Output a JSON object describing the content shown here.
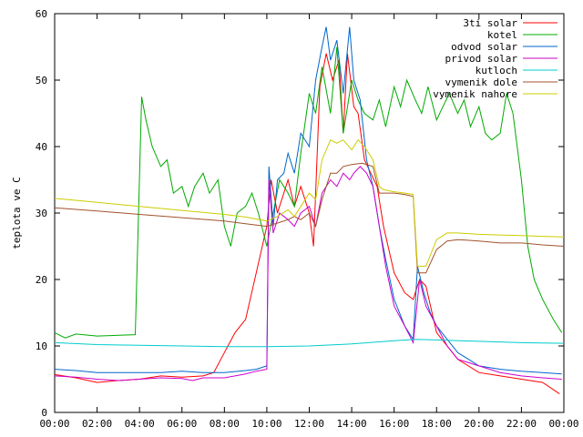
{
  "chart_data": {
    "type": "line",
    "title": "",
    "xlabel": "",
    "ylabel": "teplota ve C",
    "xlim": [
      0,
      24
    ],
    "ylim": [
      0,
      60
    ],
    "grid": false,
    "legend_position": "top-right",
    "x_ticks": [
      0,
      2,
      4,
      6,
      8,
      10,
      12,
      14,
      16,
      18,
      20,
      22,
      24
    ],
    "x_tick_labels": [
      "00:00",
      "02:00",
      "04:00",
      "06:00",
      "08:00",
      "10:00",
      "12:00",
      "14:00",
      "16:00",
      "18:00",
      "20:00",
      "22:00",
      "00:00"
    ],
    "y_ticks": [
      0,
      10,
      20,
      30,
      40,
      50,
      60
    ],
    "y_tick_labels": [
      "0",
      "10",
      "20",
      "30",
      "40",
      "50",
      "60"
    ],
    "series": [
      {
        "name": "3ti solar",
        "color": "#ff0000",
        "x": [
          0,
          1,
          2,
          3,
          4,
          5,
          6,
          7,
          7.5,
          8,
          8.5,
          9,
          9.5,
          10,
          10.2,
          10.5,
          11,
          11.3,
          11.6,
          12,
          12.2,
          12.5,
          12.8,
          13.1,
          13.4,
          13.6,
          13.8,
          14.1,
          14.3,
          14.6,
          14.9,
          15.2,
          15.5,
          16,
          16.5,
          16.9,
          17.2,
          17.5,
          18,
          19,
          20,
          21,
          22,
          23,
          23.8
        ],
        "y": [
          5.7,
          5.2,
          4.5,
          4.8,
          5,
          5.5,
          5.3,
          5.5,
          6,
          9,
          12,
          14,
          21,
          28,
          35,
          30,
          35,
          31,
          34,
          30,
          25,
          49,
          54,
          50,
          53,
          42,
          54,
          46,
          45,
          38,
          36,
          34,
          28,
          21,
          18,
          17,
          20,
          19,
          12,
          8,
          6,
          5.5,
          5,
          4.5,
          2.8
        ]
      },
      {
        "name": "kotel",
        "color": "#00aa00",
        "x": [
          0,
          0.5,
          1,
          2,
          3,
          3.8,
          4.1,
          4.3,
          4.6,
          5,
          5.3,
          5.6,
          6,
          6.3,
          6.6,
          7,
          7.3,
          7.7,
          8,
          8.3,
          8.6,
          9,
          9.3,
          9.6,
          10,
          10.3,
          10.6,
          11,
          11.3,
          11.6,
          12,
          12.3,
          12.6,
          13,
          13.3,
          13.6,
          14,
          14.3,
          14.6,
          15,
          15.3,
          15.6,
          16,
          16.3,
          16.6,
          17,
          17.3,
          17.6,
          18,
          18.3,
          18.6,
          19,
          19.3,
          19.6,
          20,
          20.3,
          20.6,
          21,
          21.3,
          21.6,
          22,
          22.3,
          22.6,
          23,
          23.5,
          23.9
        ],
        "y": [
          12,
          11.2,
          11.8,
          11.5,
          11.6,
          11.7,
          47.5,
          44,
          40,
          37,
          38,
          33,
          34,
          31,
          34,
          36,
          33,
          35,
          28,
          25,
          30,
          31,
          33,
          30,
          25,
          30,
          35,
          33,
          31,
          39,
          48,
          45,
          52,
          45,
          55,
          42,
          50,
          47,
          45,
          44,
          47,
          43,
          49,
          46,
          50,
          47,
          45,
          49,
          44,
          46,
          48,
          45,
          47,
          43,
          46,
          42,
          41,
          42,
          48,
          45,
          35,
          25,
          20,
          17,
          14,
          12
        ]
      },
      {
        "name": "odvod solar",
        "color": "#0066cc",
        "x": [
          0,
          1,
          2,
          3,
          4,
          5,
          6,
          7,
          8,
          9,
          9.5,
          10,
          10.1,
          10.3,
          10.5,
          10.8,
          11,
          11.3,
          11.6,
          12,
          12.3,
          12.6,
          12.8,
          13,
          13.3,
          13.6,
          13.9,
          14.1,
          14.4,
          14.7,
          15,
          15.3,
          15.6,
          16,
          16.5,
          16.9,
          17.1,
          17.4,
          17.7,
          18,
          18.5,
          19,
          19.5,
          20,
          21,
          22,
          23,
          23.9
        ],
        "y": [
          6.5,
          6.3,
          6,
          6,
          6,
          6,
          6.2,
          6,
          6,
          6.3,
          6.5,
          7,
          37,
          28,
          35,
          36,
          39,
          36,
          42,
          40,
          50,
          55,
          58,
          53,
          56,
          48,
          58,
          50,
          47,
          38,
          34,
          28,
          23,
          17,
          13,
          11,
          22,
          18,
          15,
          13,
          11,
          9,
          8,
          7,
          6.5,
          6.2,
          6,
          5.8
        ]
      },
      {
        "name": "privod solar",
        "color": "#cc00cc",
        "x": [
          0,
          1,
          2,
          3,
          4,
          5,
          6,
          6.5,
          7,
          8,
          9,
          9.5,
          10,
          10.1,
          10.3,
          10.6,
          11,
          11.3,
          11.6,
          12,
          12.3,
          12.6,
          13,
          13.3,
          13.6,
          13.9,
          14.1,
          14.4,
          14.7,
          15,
          15.3,
          15.6,
          16,
          16.5,
          16.9,
          17.2,
          17.5,
          18,
          18.5,
          19,
          20,
          21,
          22,
          23,
          23.9
        ],
        "y": [
          5.5,
          5.3,
          5,
          4.8,
          5,
          5.2,
          5.1,
          4.8,
          5.2,
          5.2,
          5.8,
          6.2,
          6.5,
          35,
          27,
          30,
          29,
          28,
          30,
          31,
          28,
          33,
          35,
          34,
          36,
          35,
          36,
          37,
          36,
          34,
          28,
          22,
          16,
          13,
          10.5,
          20,
          16,
          13,
          10,
          8,
          7,
          6,
          5.5,
          5.2,
          5
        ]
      },
      {
        "name": "kutloch",
        "color": "#00cccc",
        "x": [
          0,
          2,
          4,
          6,
          8,
          10,
          12,
          14,
          16,
          17,
          18,
          20,
          22,
          24
        ],
        "y": [
          10.5,
          10.2,
          10.1,
          10,
          9.9,
          9.9,
          10,
          10.3,
          10.8,
          11,
          10.9,
          10.7,
          10.5,
          10.4
        ]
      },
      {
        "name": "vymenik dole",
        "color": "#a0522d",
        "x": [
          0,
          2,
          4,
          6,
          8,
          9,
          10,
          10.5,
          11,
          11.3,
          11.6,
          12,
          12.3,
          12.6,
          13,
          13.3,
          13.6,
          14,
          14.5,
          15,
          15.3,
          15.5,
          16,
          16.5,
          16.9,
          17.1,
          17.5,
          18,
          18.5,
          19,
          20,
          21,
          22,
          23,
          24
        ],
        "y": [
          30.8,
          30.3,
          29.8,
          29.3,
          28.8,
          28.4,
          28,
          28.5,
          29,
          29.5,
          29,
          30,
          28,
          32,
          36,
          36,
          37,
          37.3,
          37.5,
          37,
          33,
          33,
          33,
          32.8,
          32.5,
          21,
          21,
          24.5,
          25.8,
          26,
          25.8,
          25.5,
          25.5,
          25.2,
          25
        ]
      },
      {
        "name": "vymenik nahore",
        "color": "#cccc00",
        "x": [
          0,
          2,
          4,
          6,
          8,
          9,
          10,
          10.5,
          11,
          11.3,
          11.6,
          12,
          12.3,
          12.6,
          13,
          13.3,
          13.6,
          14,
          14.3,
          14.6,
          15,
          15.3,
          15.5,
          16,
          16.5,
          16.9,
          17.1,
          17.5,
          18,
          18.5,
          19,
          20,
          21,
          22,
          23,
          24
        ],
        "y": [
          32.2,
          31.6,
          31,
          30.4,
          29.8,
          29.4,
          28.8,
          29.5,
          30.5,
          29.5,
          31,
          33,
          32,
          38,
          41,
          40.5,
          41,
          39.5,
          41,
          40,
          38,
          34,
          33.5,
          33.2,
          33,
          32.8,
          22,
          22,
          26,
          27,
          27,
          26.8,
          26.7,
          26.6,
          26.5,
          26.4
        ]
      }
    ]
  }
}
